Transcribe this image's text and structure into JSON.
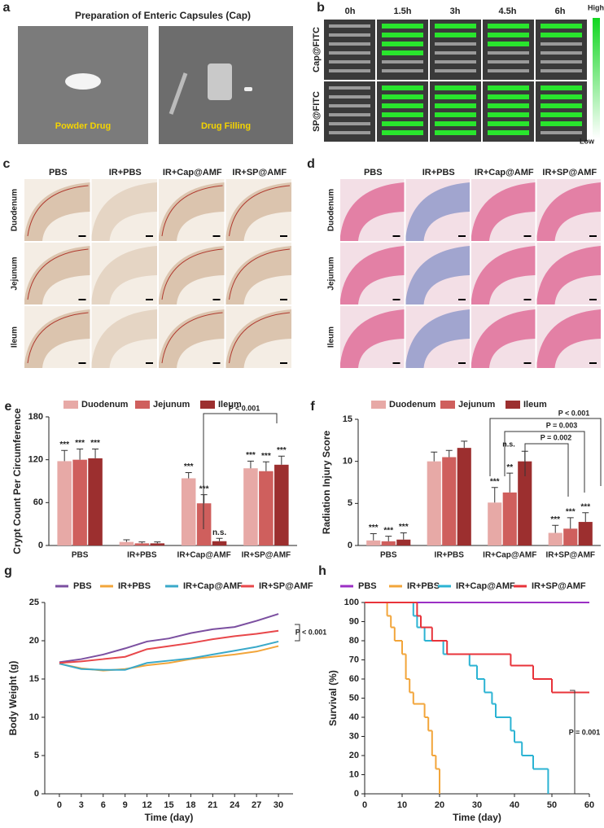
{
  "panels": {
    "a": {
      "letter": "a",
      "title": "Preparation of Enteric Capsules (Cap)",
      "photos": [
        "Powder Drug",
        "Drug Filling"
      ]
    },
    "b": {
      "letter": "b",
      "columns": [
        "0h",
        "1.5h",
        "3h",
        "4.5h",
        "6h"
      ],
      "rows": [
        "Cap@FITC",
        "SP@FITC"
      ],
      "scale": [
        "High",
        "Low"
      ]
    },
    "c": {
      "letter": "c",
      "columns": [
        "PBS",
        "IR+PBS",
        "IR+Cap@AMF",
        "IR+SP@AMF"
      ],
      "rows": [
        "Duodenum",
        "Jejunum",
        "Ileum"
      ]
    },
    "d": {
      "letter": "d",
      "columns": [
        "PBS",
        "IR+PBS",
        "IR+Cap@AMF",
        "IR+SP@AMF"
      ],
      "rows": [
        "Duodenum",
        "Jejunum",
        "Ileum"
      ]
    }
  },
  "chart_data": [
    {
      "type": "bar",
      "panel_label": "e",
      "y_label": "Crypt Count  Per Circumference",
      "categories": [
        "PBS",
        "IR+PBS",
        "IR+Cap@AMF",
        "IR+SP@AMF"
      ],
      "series": [
        {
          "name": "Duodenum",
          "color": "#e7a9a6",
          "values": [
            118,
            5,
            94,
            108
          ],
          "errors": [
            15,
            3,
            8,
            10
          ],
          "significance": [
            "***",
            null,
            "***",
            "***"
          ]
        },
        {
          "name": "Jejunum",
          "color": "#cf5f5d",
          "values": [
            120,
            3,
            59,
            104
          ],
          "errors": [
            15,
            2,
            12,
            13
          ],
          "significance": [
            "***",
            null,
            "***",
            "***"
          ]
        },
        {
          "name": "Ileum",
          "color": "#9c2f2f",
          "values": [
            122,
            3,
            6,
            113
          ],
          "errors": [
            13,
            2,
            4,
            12
          ],
          "significance": [
            "***",
            null,
            "n.s.",
            "***"
          ]
        }
      ],
      "ylim": [
        0,
        180
      ],
      "yticks": [
        0,
        60,
        120,
        180
      ],
      "annotations": [
        "P < 0.001"
      ]
    },
    {
      "type": "bar",
      "panel_label": "f",
      "y_label": "Radiation Injury Score",
      "categories": [
        "PBS",
        "IR+PBS",
        "IR+Cap@AMF",
        "IR+SP@AMF"
      ],
      "series": [
        {
          "name": "Duodenum",
          "color": "#e7a9a6",
          "values": [
            0.6,
            10,
            5.1,
            1.5
          ],
          "errors": [
            0.8,
            1.1,
            1.8,
            0.9
          ],
          "significance": [
            "***",
            null,
            "***",
            "***"
          ]
        },
        {
          "name": "Jejunum",
          "color": "#cf5f5d",
          "values": [
            0.5,
            10.5,
            6.3,
            2.0
          ],
          "errors": [
            0.6,
            0.8,
            2.3,
            1.3
          ],
          "significance": [
            "***",
            null,
            "**",
            "***"
          ]
        },
        {
          "name": "Ileum",
          "color": "#9c2f2f",
          "values": [
            0.7,
            11.6,
            10,
            2.8
          ],
          "errors": [
            0.8,
            0.8,
            1.2,
            1.1
          ],
          "significance": [
            "***",
            null,
            null,
            "***"
          ]
        }
      ],
      "ylim": [
        0,
        15
      ],
      "yticks": [
        0,
        5,
        10,
        15
      ],
      "annotations": [
        "P < 0.001",
        "P = 0.003",
        "P = 0.002",
        "n.s."
      ]
    },
    {
      "type": "line",
      "panel_label": "g",
      "x_label": "Time (day)",
      "y_label": "Body Weight (g)",
      "x": [
        0,
        3,
        6,
        9,
        12,
        15,
        18,
        21,
        24,
        27,
        30
      ],
      "series": [
        {
          "name": "PBS",
          "color": "#7b4fa0",
          "values": [
            17.2,
            17.6,
            18.2,
            19.0,
            19.9,
            20.3,
            21.0,
            21.5,
            21.8,
            22.6,
            23.5
          ]
        },
        {
          "name": "IR+PBS",
          "color": "#f2a53a",
          "values": [
            17.0,
            16.4,
            16.1,
            16.3,
            16.8,
            17.1,
            17.6,
            17.9,
            18.2,
            18.6,
            19.3
          ]
        },
        {
          "name": "IR+Cap@AMF",
          "color": "#3aa9c9",
          "values": [
            17.0,
            16.3,
            16.2,
            16.2,
            17.1,
            17.4,
            17.7,
            18.2,
            18.7,
            19.2,
            19.9
          ]
        },
        {
          "name": "IR+SP@AMF",
          "color": "#e8474a",
          "values": [
            17.1,
            17.3,
            17.6,
            17.9,
            18.9,
            19.3,
            19.7,
            20.2,
            20.6,
            20.9,
            21.3
          ]
        }
      ],
      "xlim": [
        -2,
        32
      ],
      "xticks": [
        0,
        3,
        6,
        9,
        12,
        15,
        18,
        21,
        24,
        27,
        30
      ],
      "ylim": [
        0,
        25
      ],
      "yticks": [
        0,
        5,
        10,
        15,
        20,
        25
      ],
      "annotations": [
        "P < 0.001"
      ]
    },
    {
      "type": "step",
      "panel_label": "h",
      "x_label": "Time (day)",
      "y_label": "Survival (%)",
      "series": [
        {
          "name": "PBS",
          "color": "#9b2fc4",
          "x": [
            0,
            60
          ],
          "values": [
            100,
            100
          ]
        },
        {
          "name": "IR+PBS",
          "color": "#f2a53a",
          "x": [
            0,
            6,
            7,
            8,
            10,
            11,
            12,
            13,
            16,
            17,
            18,
            19,
            20
          ],
          "values": [
            100,
            93,
            87,
            80,
            73,
            60,
            53,
            47,
            40,
            33,
            20,
            13,
            0
          ]
        },
        {
          "name": "IR+Cap@AMF",
          "color": "#2bb3d3",
          "x": [
            0,
            13,
            14,
            16,
            21,
            28,
            30,
            32,
            34,
            35,
            39,
            40,
            42,
            45,
            49
          ],
          "values": [
            100,
            93,
            87,
            80,
            73,
            67,
            60,
            53,
            47,
            40,
            33,
            27,
            20,
            13,
            0
          ]
        },
        {
          "name": "IR+SP@AMF",
          "color": "#e8333a",
          "x": [
            0,
            14,
            15,
            18,
            22,
            39,
            45,
            50,
            60
          ],
          "values": [
            100,
            93,
            87,
            80,
            73,
            67,
            60,
            53,
            53
          ]
        }
      ],
      "xlim": [
        0,
        60
      ],
      "xticks": [
        0,
        10,
        20,
        30,
        40,
        50,
        60
      ],
      "ylim": [
        0,
        100
      ],
      "yticks": [
        0,
        10,
        20,
        30,
        40,
        50,
        60,
        70,
        80,
        90,
        100
      ],
      "annotations": [
        "P = 0.001"
      ]
    }
  ]
}
